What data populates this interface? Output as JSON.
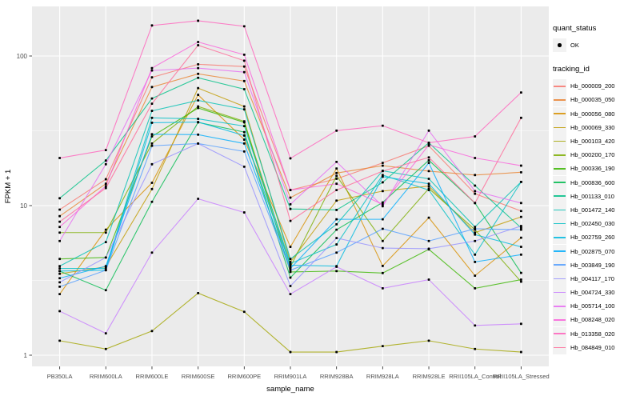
{
  "chart_data": {
    "type": "line",
    "title": "",
    "xlabel": "sample_name",
    "ylabel": "FPKM + 1",
    "y_scale": "log10",
    "ylim": [
      1,
      215
    ],
    "grid": true,
    "panel_bg": "#EBEBEB",
    "grid_color": "#FFFFFF",
    "point_color": "#000000",
    "tick_label_color": "#4D4D4D",
    "y_ticks": [
      {
        "value": 1,
        "label": "1"
      },
      {
        "value": 10,
        "label": "10"
      },
      {
        "value": 100,
        "label": "100"
      }
    ],
    "y_minor_ticks": [
      3.1623,
      31.623
    ],
    "categories": [
      "PB350LA",
      "RRIM600LA",
      "RRIM600LE",
      "RRIM600SE",
      "RRIM600PE",
      "RRIM901LA",
      "RRIM928BA",
      "RRIM928LA",
      "RRIM928LE",
      "RRII105LA_Control",
      "RRII105LA_Stressed"
    ],
    "legend": {
      "quant_title": "quant_status",
      "quant_items": [
        {
          "label": "OK",
          "shape": "point"
        }
      ],
      "tracking_title": "tracking_id",
      "legend_position": "right"
    },
    "series": [
      {
        "name": "Hb_000009_200",
        "color": "#F8766D",
        "values": [
          9.4,
          15.0,
          72,
          88,
          85,
          12.7,
          15.1,
          19.3,
          25.1,
          12.0,
          9.2
        ]
      },
      {
        "name": "Hb_000035_050",
        "color": "#EA8331",
        "values": [
          8.5,
          14.0,
          62,
          76,
          68,
          11.3,
          16.5,
          18.5,
          17.0,
          16.0,
          16.7
        ]
      },
      {
        "name": "Hb_000056_080",
        "color": "#D89000",
        "values": [
          2.56,
          6.9,
          14.2,
          55,
          27.6,
          5.3,
          17.7,
          3.95,
          8.3,
          3.4,
          6.1
        ]
      },
      {
        "name": "Hb_000069_330",
        "color": "#C09B00",
        "values": [
          3.5,
          3.9,
          12.9,
          61,
          46,
          4.2,
          10.8,
          12.5,
          13.5,
          6.6,
          8.4
        ]
      },
      {
        "name": "Hb_000103_420",
        "color": "#A3A500",
        "values": [
          1.25,
          1.1,
          1.45,
          2.6,
          1.95,
          1.05,
          1.05,
          1.15,
          1.25,
          1.1,
          1.05
        ]
      },
      {
        "name": "Hb_000200_170",
        "color": "#7CAE00",
        "values": [
          6.6,
          6.6,
          26,
          46,
          36.6,
          3.9,
          15.8,
          5.8,
          13.0,
          6.9,
          3.1
        ]
      },
      {
        "name": "Hb_000336_190",
        "color": "#39B600",
        "values": [
          4.4,
          4.5,
          29,
          44.9,
          36,
          3.6,
          3.65,
          3.54,
          5.1,
          2.8,
          3.2
        ]
      },
      {
        "name": "Hb_000836_600",
        "color": "#00BB4E",
        "values": [
          3.65,
          2.72,
          10.6,
          36,
          31,
          3.3,
          6.9,
          10.5,
          20.1,
          10.4,
          3.55
        ]
      },
      {
        "name": "Hb_001133_010",
        "color": "#00C087",
        "values": [
          11.2,
          20.0,
          52,
          71.5,
          60,
          9.5,
          9.35,
          14.3,
          26.3,
          13.6,
          7.1
        ]
      },
      {
        "name": "Hb_001472_140",
        "color": "#00C0B3",
        "values": [
          3.94,
          5.7,
          43,
          50.5,
          44,
          4.4,
          7.5,
          17.1,
          15.1,
          7.2,
          14.4
        ]
      },
      {
        "name": "Hb_002450_030",
        "color": "#00BFC4",
        "values": [
          3.8,
          3.8,
          38.6,
          38,
          34,
          4.1,
          5.5,
          16.0,
          12.7,
          4.7,
          14.4
        ]
      },
      {
        "name": "Hb_002759_260",
        "color": "#00BAE0",
        "values": [
          3.65,
          3.7,
          35.8,
          36.2,
          29.4,
          4.0,
          3.94,
          15.6,
          14.0,
          6.4,
          5.3
        ]
      },
      {
        "name": "Hb_002875_070",
        "color": "#00ACFC",
        "values": [
          3.27,
          3.94,
          30,
          29.8,
          26,
          3.8,
          8.1,
          8.1,
          19.3,
          4.2,
          4.7
        ]
      },
      {
        "name": "Hb_003849_190",
        "color": "#529EFF",
        "values": [
          2.87,
          3.7,
          25.1,
          26,
          23,
          3.7,
          4.85,
          7.0,
          5.8,
          7.0,
          6.9
        ]
      },
      {
        "name": "Hb_004117_170",
        "color": "#9590FF",
        "values": [
          3.07,
          4.5,
          18.9,
          26,
          18.2,
          2.9,
          6.07,
          5.2,
          5.15,
          5.8,
          7.3
        ]
      },
      {
        "name": "Hb_004724_330",
        "color": "#C77CFF",
        "values": [
          1.97,
          1.4,
          4.85,
          11.1,
          9.0,
          2.56,
          3.9,
          2.8,
          3.2,
          1.58,
          1.62
        ]
      },
      {
        "name": "Hb_005714_100",
        "color": "#E76BF3",
        "values": [
          5.8,
          18.9,
          80,
          83,
          78,
          10.2,
          19.6,
          9.9,
          31.7,
          12.5,
          10.4
        ]
      },
      {
        "name": "Hb_008248_020",
        "color": "#FA62DB",
        "values": [
          7.2,
          13.5,
          83,
          124,
          102,
          12.7,
          14.0,
          10.2,
          25.5,
          20.8,
          18.5
        ]
      },
      {
        "name": "Hb_013358_020",
        "color": "#FF62BC",
        "values": [
          20.8,
          23.5,
          160,
          172,
          158,
          20.7,
          31.7,
          34.2,
          26.3,
          29.0,
          57.0
        ]
      },
      {
        "name": "Hb_084849_010",
        "color": "#FF6A98",
        "values": [
          7.8,
          13.1,
          48,
          118,
          93,
          7.9,
          12.7,
          17.0,
          21.0,
          10.4,
          38.6
        ]
      }
    ]
  }
}
